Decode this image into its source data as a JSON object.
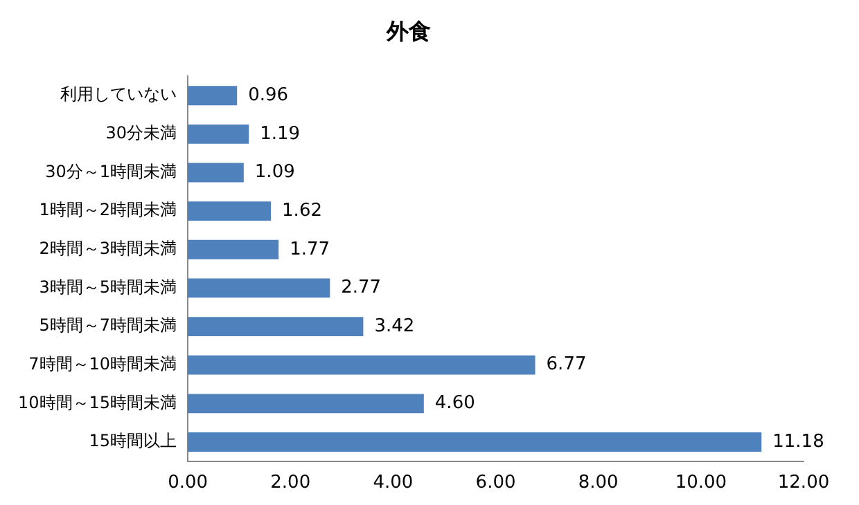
{
  "chart_data": {
    "type": "bar",
    "orientation": "horizontal",
    "title": "外食",
    "categories": [
      "利用していない",
      "30分未満",
      "30分～1時間未満",
      "1時間～2時間未満",
      "2時間～3時間未満",
      "3時間～5時間未満",
      "5時間～7時間未満",
      "7時間～10時間未満",
      "10時間～15時間未満",
      "15時間以上"
    ],
    "values": [
      0.96,
      1.19,
      1.09,
      1.62,
      1.77,
      2.77,
      3.42,
      6.77,
      4.6,
      11.18
    ],
    "value_labels": [
      "0.96",
      "1.19",
      "1.09",
      "1.62",
      "1.77",
      "2.77",
      "3.42",
      "6.77",
      "4.60",
      "11.18"
    ],
    "color": "#4f81bd",
    "xlim": [
      0,
      12
    ],
    "xticks": [
      {
        "value": 0,
        "label": "0.00"
      },
      {
        "value": 2,
        "label": "2.00"
      },
      {
        "value": 4,
        "label": "4.00"
      },
      {
        "value": 6,
        "label": "6.00"
      },
      {
        "value": 8,
        "label": "8.00"
      },
      {
        "value": 10,
        "label": "10.00"
      },
      {
        "value": 12,
        "label": "12.00"
      }
    ],
    "grid": false,
    "legend": false
  }
}
